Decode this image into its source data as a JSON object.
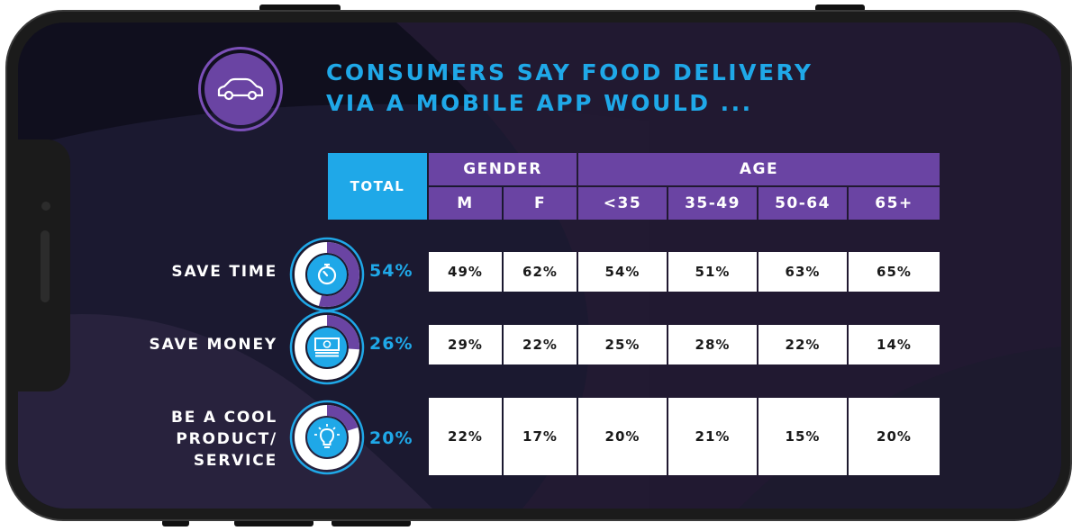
{
  "title": {
    "line1": "CONSUMERS SAY FOOD DELIVERY",
    "line2": "VIA A MOBILE APP WOULD ..."
  },
  "colors": {
    "phone_frame": "#1b1b1b",
    "screen_bg": "#100f1e",
    "purple": "#6a44a3",
    "blue": "#1fa8e8",
    "white": "#ffffff"
  },
  "icons": {
    "header": "car-icon",
    "rows": [
      "stopwatch-icon",
      "money-icon",
      "lightbulb-icon"
    ]
  },
  "table": {
    "total_label": "TOTAL",
    "group_headers": {
      "gender": "GENDER",
      "age": "AGE"
    },
    "columns": [
      "M",
      "F",
      "<35",
      "35-49",
      "50-64",
      "65+"
    ],
    "rows": [
      {
        "label": "SAVE TIME",
        "total": "54%",
        "total_value": 54,
        "values": [
          "49%",
          "62%",
          "54%",
          "51%",
          "63%",
          "65%"
        ]
      },
      {
        "label": "SAVE MONEY",
        "total": "26%",
        "total_value": 26,
        "values": [
          "29%",
          "22%",
          "25%",
          "28%",
          "22%",
          "14%"
        ]
      },
      {
        "label": "BE A COOL PRODUCT/ SERVICE",
        "label_lines": [
          "BE A COOL",
          "PRODUCT/",
          "SERVICE"
        ],
        "total": "20%",
        "total_value": 20,
        "values": [
          "22%",
          "17%",
          "20%",
          "21%",
          "15%",
          "20%"
        ]
      }
    ]
  }
}
